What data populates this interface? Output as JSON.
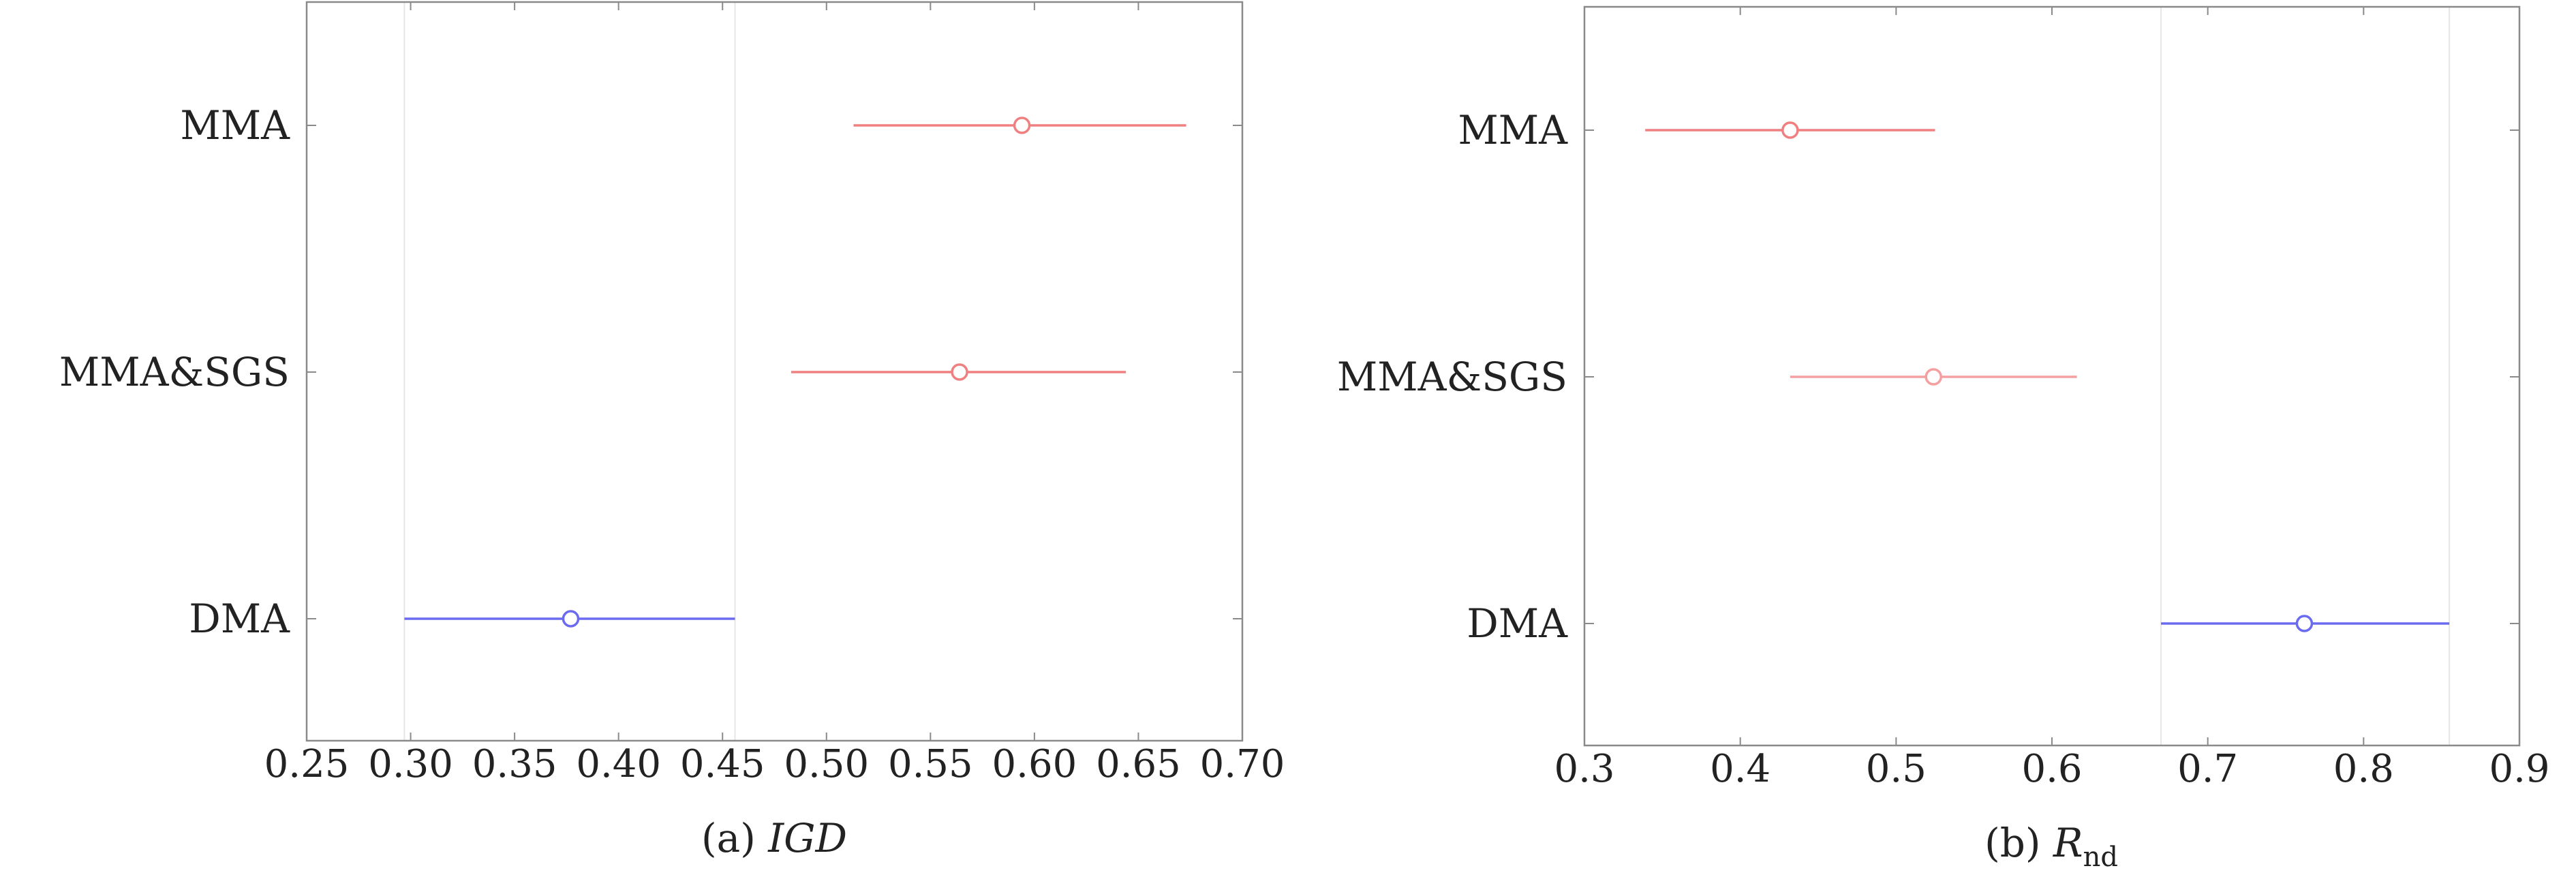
{
  "chart_data": [
    {
      "type": "scatter",
      "subtype": "interval-plot",
      "caption_prefix": "(a)",
      "caption_var": "IGD",
      "caption_sub": "",
      "categories": [
        "MMA",
        "MMA&SGS",
        "DMA"
      ],
      "x_ticks": [
        "0.25",
        "0.30",
        "0.35",
        "0.40",
        "0.45",
        "0.50",
        "0.55",
        "0.60",
        "0.65",
        "0.70"
      ],
      "xlim": [
        0.25,
        0.7
      ],
      "grid": false,
      "points": [
        {
          "category": "MMA",
          "mean": 0.594,
          "low": 0.513,
          "high": 0.673,
          "color": "#f08080"
        },
        {
          "category": "MMA&SGS",
          "mean": 0.564,
          "low": 0.483,
          "high": 0.644,
          "color": "#f08080"
        },
        {
          "category": "DMA",
          "mean": 0.377,
          "low": 0.297,
          "high": 0.456,
          "color": "#6b6bf0"
        }
      ],
      "reference_lines": [
        0.297,
        0.456
      ]
    },
    {
      "type": "scatter",
      "subtype": "interval-plot",
      "caption_prefix": "(b)",
      "caption_var": "R",
      "caption_sub": "nd",
      "categories": [
        "MMA",
        "MMA&SGS",
        "DMA"
      ],
      "x_ticks": [
        "0.3",
        "0.4",
        "0.5",
        "0.6",
        "0.7",
        "0.8",
        "0.9"
      ],
      "xlim": [
        0.3,
        0.9
      ],
      "grid": false,
      "points": [
        {
          "category": "MMA",
          "mean": 0.432,
          "low": 0.339,
          "high": 0.525,
          "color": "#f08080"
        },
        {
          "category": "MMA&SGS",
          "mean": 0.524,
          "low": 0.432,
          "high": 0.616,
          "color": "#f4a0a0"
        },
        {
          "category": "DMA",
          "mean": 0.762,
          "low": 0.67,
          "high": 0.855,
          "color": "#6b6bf0"
        }
      ],
      "reference_lines": [
        0.67,
        0.855
      ]
    }
  ]
}
